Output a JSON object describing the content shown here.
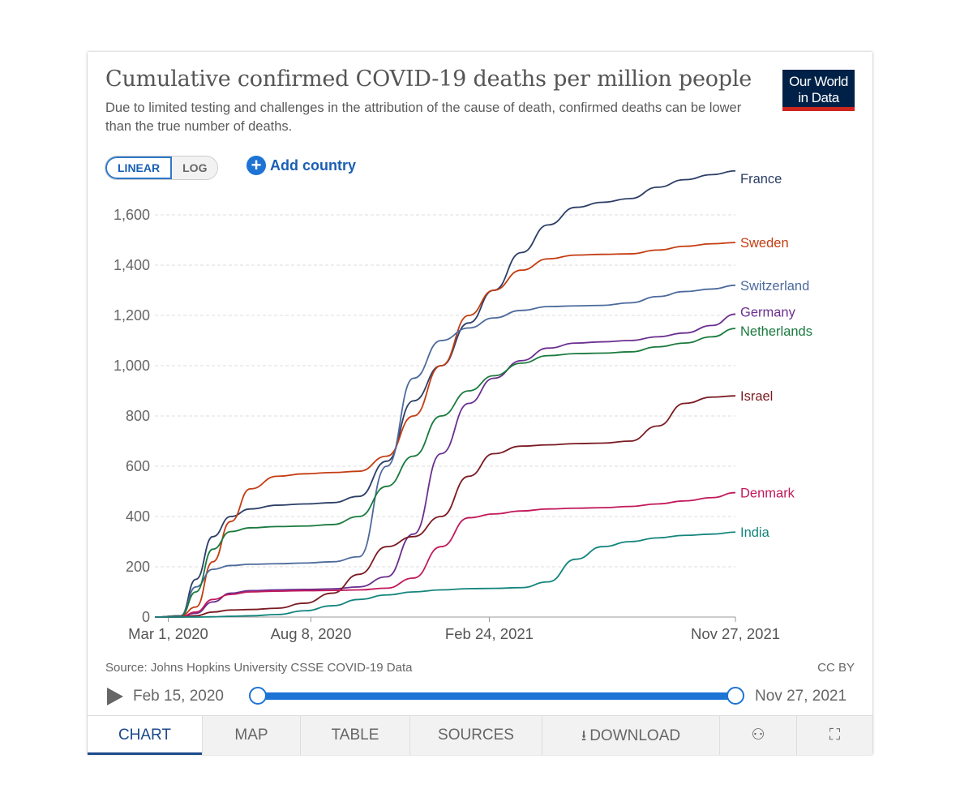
{
  "header": {
    "title": "Cumulative confirmed COVID-19 deaths per million people",
    "subtitle": "Due to limited testing and challenges in the attribution of the cause of death, confirmed deaths can be lower than the true number of deaths.",
    "logo_line1": "Our World",
    "logo_line2": "in Data"
  },
  "controls": {
    "linear_label": "LINEAR",
    "log_label": "LOG",
    "add_country_label": "Add country",
    "add_icon": "plus-circle-icon"
  },
  "footer": {
    "source": "Source: Johns Hopkins University CSSE COVID-19 Data",
    "license": "CC BY"
  },
  "timeline": {
    "start_label": "Feb 15, 2020",
    "end_label": "Nov 27, 2021"
  },
  "tabs": {
    "chart": "CHART",
    "map": "MAP",
    "table": "TABLE",
    "sources": "SOURCES",
    "download": "DOWNLOAD"
  },
  "chart_data": {
    "type": "line",
    "title": "Cumulative confirmed COVID-19 deaths per million people",
    "xlim": [
      "2020-02-15",
      "2021-11-27"
    ],
    "x_ticks": [
      "Mar 1, 2020",
      "Aug 8, 2020",
      "Feb 24, 2021",
      "Nov 27, 2021"
    ],
    "x_tick_dates": [
      "2020-03-01",
      "2020-08-08",
      "2021-02-24",
      "2021-11-27"
    ],
    "ylim": [
      0,
      1700
    ],
    "y_ticks": [
      0,
      200,
      400,
      600,
      800,
      1000,
      1200,
      1400,
      1600
    ],
    "y_tick_labels": [
      "0",
      "200",
      "400",
      "600",
      "800",
      "1,000",
      "1,200",
      "1,400",
      "1,600"
    ],
    "grid": true,
    "x": [
      "2020-02-15",
      "2020-03-15",
      "2020-04-01",
      "2020-04-20",
      "2020-05-10",
      "2020-06-01",
      "2020-07-01",
      "2020-08-01",
      "2020-09-01",
      "2020-10-01",
      "2020-11-01",
      "2020-12-01",
      "2021-01-01",
      "2021-02-01",
      "2021-03-01",
      "2021-04-01",
      "2021-05-01",
      "2021-06-01",
      "2021-07-01",
      "2021-08-01",
      "2021-09-01",
      "2021-10-01",
      "2021-11-01",
      "2021-11-27"
    ],
    "series": [
      {
        "name": "France",
        "color": "#2c3e66",
        "values": [
          0,
          5,
          150,
          320,
          400,
          430,
          445,
          450,
          455,
          480,
          620,
          860,
          1000,
          1170,
          1300,
          1450,
          1560,
          1630,
          1650,
          1665,
          1710,
          1740,
          1760,
          1775
        ]
      },
      {
        "name": "Sweden",
        "color": "#c43c12",
        "values": [
          0,
          5,
          40,
          220,
          380,
          510,
          560,
          570,
          575,
          580,
          640,
          800,
          1000,
          1200,
          1300,
          1380,
          1425,
          1440,
          1443,
          1445,
          1460,
          1475,
          1485,
          1490
        ]
      },
      {
        "name": "Switzerland",
        "color": "#4c6a9c",
        "values": [
          0,
          5,
          120,
          190,
          205,
          210,
          212,
          215,
          220,
          240,
          600,
          950,
          1100,
          1150,
          1190,
          1220,
          1235,
          1238,
          1240,
          1250,
          1275,
          1295,
          1305,
          1320
        ]
      },
      {
        "name": "Germany",
        "color": "#6b2f8f",
        "values": [
          0,
          1,
          15,
          60,
          95,
          105,
          108,
          110,
          112,
          120,
          160,
          330,
          650,
          850,
          950,
          1020,
          1070,
          1090,
          1095,
          1100,
          1115,
          1130,
          1160,
          1205
        ]
      },
      {
        "name": "Netherlands",
        "color": "#197a3d",
        "values": [
          0,
          3,
          100,
          270,
          340,
          355,
          360,
          362,
          368,
          400,
          520,
          640,
          800,
          900,
          960,
          1010,
          1040,
          1048,
          1050,
          1055,
          1075,
          1090,
          1115,
          1148
        ]
      },
      {
        "name": "Israel",
        "color": "#7a1a22",
        "values": [
          0,
          0,
          5,
          20,
          28,
          30,
          35,
          55,
          95,
          170,
          280,
          320,
          400,
          560,
          650,
          680,
          685,
          690,
          692,
          700,
          760,
          850,
          875,
          880
        ]
      },
      {
        "name": "Denmark",
        "color": "#c2185b",
        "values": [
          0,
          1,
          20,
          70,
          90,
          100,
          103,
          105,
          106,
          108,
          115,
          155,
          280,
          395,
          410,
          422,
          430,
          433,
          435,
          440,
          450,
          462,
          475,
          495
        ]
      },
      {
        "name": "India",
        "color": "#13847c",
        "values": [
          0,
          0,
          0,
          1,
          3,
          5,
          10,
          25,
          45,
          70,
          88,
          100,
          108,
          113,
          114,
          117,
          140,
          230,
          280,
          300,
          315,
          325,
          330,
          338
        ]
      }
    ]
  }
}
